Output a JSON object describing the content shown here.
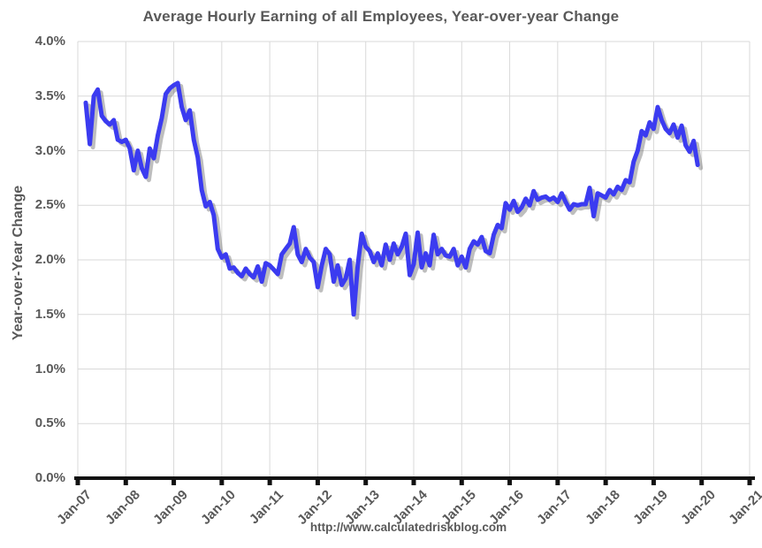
{
  "title": "Average Hourly Earning of all Employees, Year-over-year Change",
  "footer": {
    "text": "http://www.calculatedriskblog.com"
  },
  "chart_data": {
    "type": "line",
    "title": "Average Hourly Earning of all Employees, Year-over-year Change",
    "xlabel": "",
    "ylabel": "Year-over-Year Change",
    "x_tick_labels": [
      "Jan-07",
      "Jan-08",
      "Jan-09",
      "Jan-10",
      "Jan-11",
      "Jan-12",
      "Jan-13",
      "Jan-14",
      "Jan-15",
      "Jan-16",
      "Jan-17",
      "Jan-18",
      "Jan-19",
      "Jan-20",
      "Jan-21"
    ],
    "y_tick_labels": [
      "0.0%",
      "0.5%",
      "1.0%",
      "1.5%",
      "2.0%",
      "2.5%",
      "3.0%",
      "3.5%",
      "4.0%"
    ],
    "ylim": [
      0,
      4
    ],
    "grid": true,
    "legend": false,
    "x_total_months": 168,
    "x_start": "Mar-2007",
    "x_end": "Dec-2019",
    "series_start_month_offset": 2,
    "values_unit": "percent",
    "values": [
      3.44,
      3.06,
      3.5,
      3.56,
      3.32,
      3.27,
      3.24,
      3.28,
      3.1,
      3.08,
      3.1,
      3.02,
      2.82,
      3.0,
      2.84,
      2.76,
      3.02,
      2.93,
      3.14,
      3.3,
      3.52,
      3.57,
      3.6,
      3.62,
      3.4,
      3.28,
      3.37,
      3.1,
      2.94,
      2.64,
      2.49,
      2.53,
      2.41,
      2.1,
      2.02,
      2.05,
      1.92,
      1.93,
      1.88,
      1.85,
      1.92,
      1.87,
      1.84,
      1.94,
      1.8,
      1.97,
      1.95,
      1.91,
      1.87,
      2.05,
      2.1,
      2.15,
      2.3,
      2.05,
      1.98,
      2.1,
      2.02,
      1.98,
      1.75,
      1.95,
      2.1,
      2.05,
      1.8,
      1.95,
      1.77,
      1.83,
      2.0,
      1.5,
      1.95,
      2.24,
      2.12,
      2.08,
      1.98,
      2.06,
      1.95,
      2.14,
      2.0,
      2.15,
      2.05,
      2.12,
      2.24,
      1.86,
      1.96,
      2.25,
      1.93,
      2.06,
      1.95,
      2.23,
      2.05,
      2.1,
      2.04,
      2.03,
      2.1,
      1.95,
      2.03,
      1.93,
      2.1,
      2.17,
      2.14,
      2.21,
      2.08,
      2.06,
      2.23,
      2.32,
      2.29,
      2.52,
      2.46,
      2.54,
      2.44,
      2.48,
      2.56,
      2.5,
      2.63,
      2.55,
      2.57,
      2.58,
      2.55,
      2.57,
      2.53,
      2.61,
      2.53,
      2.46,
      2.51,
      2.5,
      2.51,
      2.51,
      2.66,
      2.4,
      2.61,
      2.59,
      2.57,
      2.64,
      2.6,
      2.67,
      2.64,
      2.73,
      2.71,
      2.9,
      3.0,
      3.18,
      3.14,
      3.26,
      3.2,
      3.4,
      3.28,
      3.2,
      3.16,
      3.24,
      3.12,
      3.23,
      3.05,
      2.99,
      3.09,
      2.87
    ],
    "line_color": "#3b3bf0",
    "shadow_color": "rgba(110,110,110,0.45)",
    "grid_color": "#d9d9d9",
    "axis_color": "#111111",
    "text_color": "#595959"
  }
}
